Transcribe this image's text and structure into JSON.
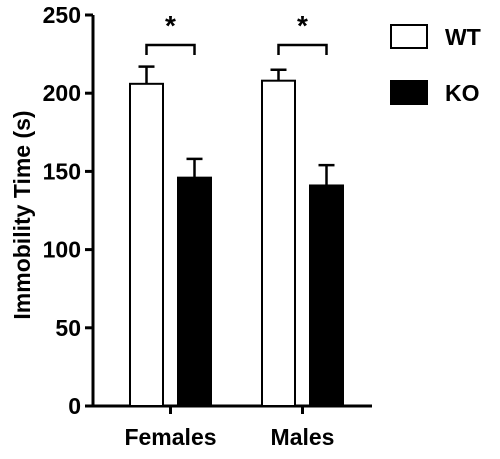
{
  "chart_data": {
    "type": "bar",
    "title": "",
    "xlabel": "",
    "ylabel": "Immobility Time (s)",
    "ylim": [
      0,
      250
    ],
    "yticks": [
      0,
      50,
      100,
      150,
      200,
      250
    ],
    "categories": [
      "Females",
      "Males"
    ],
    "series": [
      {
        "name": "WT",
        "values": [
          206,
          208
        ],
        "errors": [
          11,
          7
        ],
        "fill": "#ffffff",
        "stroke": "#000000"
      },
      {
        "name": "KO",
        "values": [
          146,
          141
        ],
        "errors": [
          12,
          13
        ],
        "fill": "#000000",
        "stroke": "#000000"
      }
    ],
    "significance": [
      {
        "category": "Females",
        "label": "*"
      },
      {
        "category": "Males",
        "label": "*"
      }
    ],
    "legend": {
      "position": "top-right"
    },
    "grid": false
  }
}
